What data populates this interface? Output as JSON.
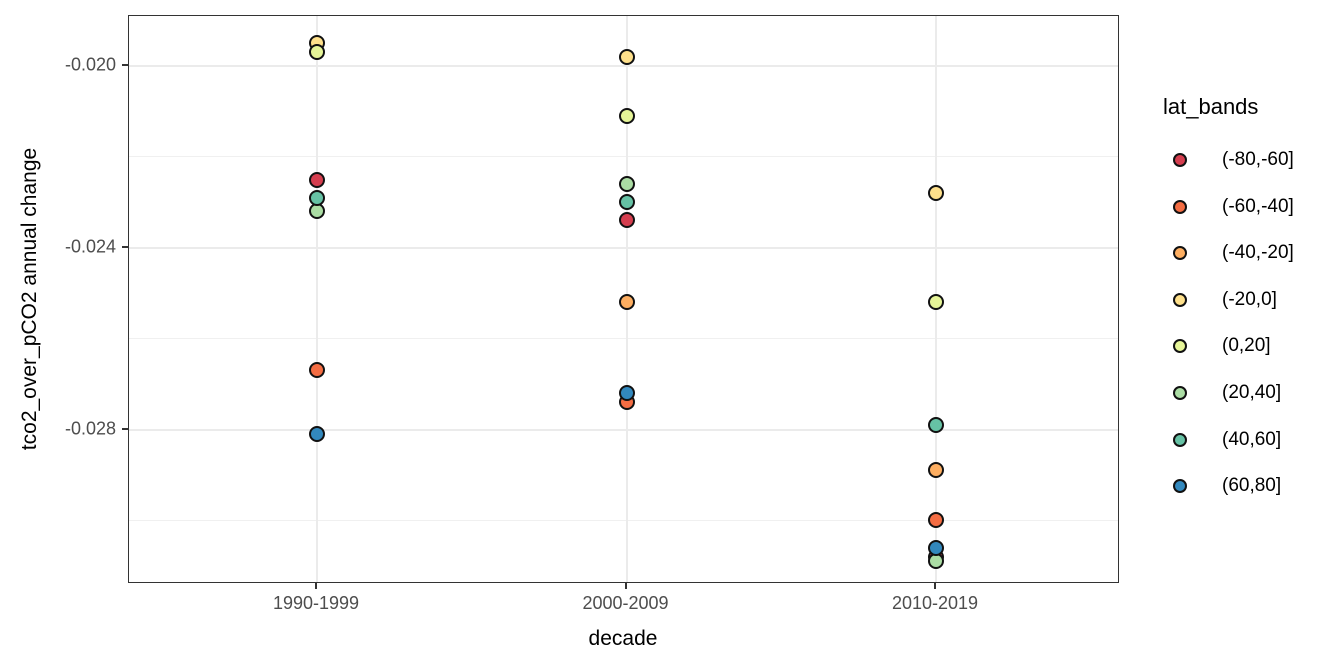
{
  "chart_data": {
    "type": "scatter",
    "xlabel": "decade",
    "ylabel": "tco2_over_pCO2 annual change",
    "legend_title": "lat_bands",
    "legend_position": "right",
    "grid": true,
    "categories": [
      "1990-1999",
      "2000-2009",
      "2010-2019"
    ],
    "series": [
      {
        "name": "(-80,-60]",
        "color": "#D53E4F",
        "values": [
          -0.0225,
          -0.0234,
          -0.0308
        ]
      },
      {
        "name": "(-60,-40]",
        "color": "#F46D43",
        "values": [
          -0.0267,
          -0.0274,
          -0.03
        ]
      },
      {
        "name": "(-40,-20]",
        "color": "#FDAE61",
        "values": [
          null,
          -0.0252,
          -0.0289
        ]
      },
      {
        "name": "(-20,0]",
        "color": "#FEE08B",
        "values": [
          -0.0195,
          -0.0198,
          -0.0228
        ]
      },
      {
        "name": "(0,20]",
        "color": "#E6F598",
        "values": [
          -0.0197,
          -0.0211,
          -0.0252
        ]
      },
      {
        "name": "(20,40]",
        "color": "#ABDDA4",
        "values": [
          -0.0232,
          -0.0226,
          -0.0309
        ]
      },
      {
        "name": "(40,60]",
        "color": "#66C2A5",
        "values": [
          -0.0229,
          -0.023,
          -0.0279
        ]
      },
      {
        "name": "(60,80]",
        "color": "#3288BD",
        "values": [
          -0.0281,
          -0.0272,
          -0.0306
        ]
      }
    ],
    "y_axis": {
      "ticks": [
        -0.02,
        -0.024,
        -0.028
      ],
      "tick_labels": [
        "-0.020",
        "-0.024",
        "-0.028"
      ],
      "minor_ticks": [
        -0.022,
        -0.026,
        -0.03
      ],
      "ylim": [
        -0.0314,
        -0.0189
      ]
    },
    "point_outline": "#000000"
  }
}
